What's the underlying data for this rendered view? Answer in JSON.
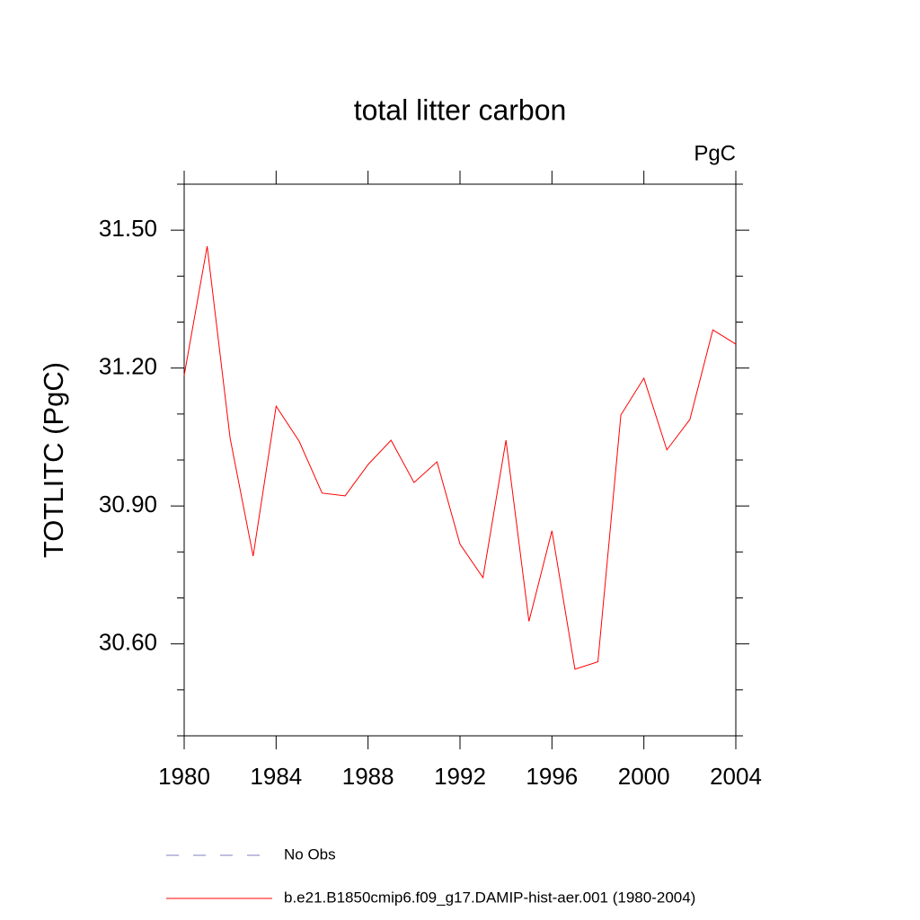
{
  "chart_data": {
    "type": "line",
    "title": "total litter carbon",
    "subtitle": "PgC",
    "y_label": "TOTLITC  (PgC)",
    "x": [
      1980,
      1981,
      1982,
      1983,
      1984,
      1985,
      1986,
      1987,
      1988,
      1989,
      1990,
      1991,
      1992,
      1993,
      1994,
      1995,
      1996,
      1997,
      1998,
      1999,
      2000,
      2001,
      2002,
      2003,
      2004
    ],
    "series": [
      {
        "name": "No Obs",
        "color": "#7f7fbf",
        "dash": "dashed",
        "values": [
          null,
          null,
          null,
          null,
          null,
          null,
          null,
          null,
          null,
          null,
          null,
          null,
          null,
          null,
          null,
          null,
          null,
          null,
          null,
          null,
          null,
          null,
          null,
          null,
          null
        ]
      },
      {
        "name": "b.e21.B1850cmip6.f09_g17.DAMIP-hist-aer.001 (1980-2004)",
        "color": "#ff0000",
        "dash": "solid",
        "values": [
          31.184,
          31.465,
          31.047,
          30.791,
          31.117,
          31.041,
          30.928,
          30.922,
          30.99,
          31.043,
          30.951,
          30.996,
          30.817,
          30.744,
          31.043,
          30.649,
          30.846,
          30.545,
          30.561,
          31.098,
          31.178,
          31.022,
          31.088,
          31.283,
          31.252
        ]
      }
    ],
    "xlim": [
      1980,
      2004
    ],
    "xticks": [
      1980,
      1984,
      1988,
      1992,
      1996,
      2000,
      2004
    ],
    "ylim": [
      30.4,
      31.6
    ],
    "yticks": [
      {
        "value": 30.6,
        "label": "30.60"
      },
      {
        "value": 30.9,
        "label": "30.90"
      },
      {
        "value": 31.2,
        "label": "31.20"
      },
      {
        "value": 31.5,
        "label": "31.50"
      }
    ],
    "yticks_minor": [
      30.4,
      30.5,
      30.7,
      30.8,
      31.0,
      31.1,
      31.3,
      31.4,
      31.6
    ],
    "grid": false,
    "legend": "bottom"
  }
}
